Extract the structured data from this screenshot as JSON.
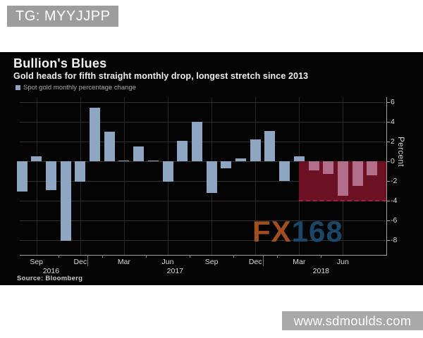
{
  "overlays": {
    "tg_banner": "TG: MYYJJPP",
    "fx_watermark": {
      "fx": "FX",
      "num": "168"
    },
    "site_watermark": "www.sdmoulds.com"
  },
  "chart_data": {
    "type": "bar",
    "title": "Bullion's Blues",
    "subtitle": "Gold heads for fifth straight monthly drop, longest stretch since 2013",
    "series_name": "Spot gold monthly percentage change",
    "source": "Source: Bloomberg",
    "ylabel": "Percent",
    "unit": "percent",
    "y_ticks": [
      6,
      4,
      2,
      0,
      -2,
      -4,
      -6,
      -8
    ],
    "ylim": [
      -9.5,
      6.5
    ],
    "x_labeled_months": [
      "Sep",
      "Dec",
      "Mar",
      "Jun"
    ],
    "categories": [
      {
        "m": "Aug",
        "y": "2016"
      },
      {
        "m": "Sep",
        "y": "2016"
      },
      {
        "m": "Oct",
        "y": "2016"
      },
      {
        "m": "Nov",
        "y": "2016"
      },
      {
        "m": "Dec",
        "y": "2016"
      },
      {
        "m": "Jan",
        "y": "2017"
      },
      {
        "m": "Feb",
        "y": "2017"
      },
      {
        "m": "Mar",
        "y": "2017"
      },
      {
        "m": "Apr",
        "y": "2017"
      },
      {
        "m": "May",
        "y": "2017"
      },
      {
        "m": "Jun",
        "y": "2017"
      },
      {
        "m": "Jul",
        "y": "2017"
      },
      {
        "m": "Aug",
        "y": "2017"
      },
      {
        "m": "Sep",
        "y": "2017"
      },
      {
        "m": "Oct",
        "y": "2017"
      },
      {
        "m": "Nov",
        "y": "2017"
      },
      {
        "m": "Dec",
        "y": "2017"
      },
      {
        "m": "Jan",
        "y": "2018"
      },
      {
        "m": "Feb",
        "y": "2018"
      },
      {
        "m": "Mar",
        "y": "2018"
      },
      {
        "m": "Apr",
        "y": "2018"
      },
      {
        "m": "May",
        "y": "2018"
      },
      {
        "m": "Jun",
        "y": "2018"
      },
      {
        "m": "Jul",
        "y": "2018"
      },
      {
        "m": "Aug",
        "y": "2018"
      }
    ],
    "values": [
      -3.1,
      0.5,
      -2.9,
      -8.1,
      -2.1,
      5.4,
      3.0,
      0.1,
      1.5,
      0.0,
      -2.1,
      2.1,
      4.0,
      -3.2,
      -0.7,
      0.3,
      2.2,
      3.1,
      -2.0,
      0.5,
      -0.9,
      -1.3,
      -3.5,
      -2.5,
      -1.4
    ],
    "highlight": {
      "start_index": 20,
      "end_index": 24,
      "box_from": 0,
      "box_to": -4,
      "box_color": "#6c1123",
      "box_dash_color": "#a51d3d",
      "bar_color": "#b26d88"
    },
    "bar_color": "#8fa6c3",
    "colors": {
      "background": "#040404",
      "grid": "#2e2e2e",
      "axis": "#a0a0a0",
      "tick_text": "#dadada"
    },
    "legend_position": "top-left",
    "grid": true
  }
}
